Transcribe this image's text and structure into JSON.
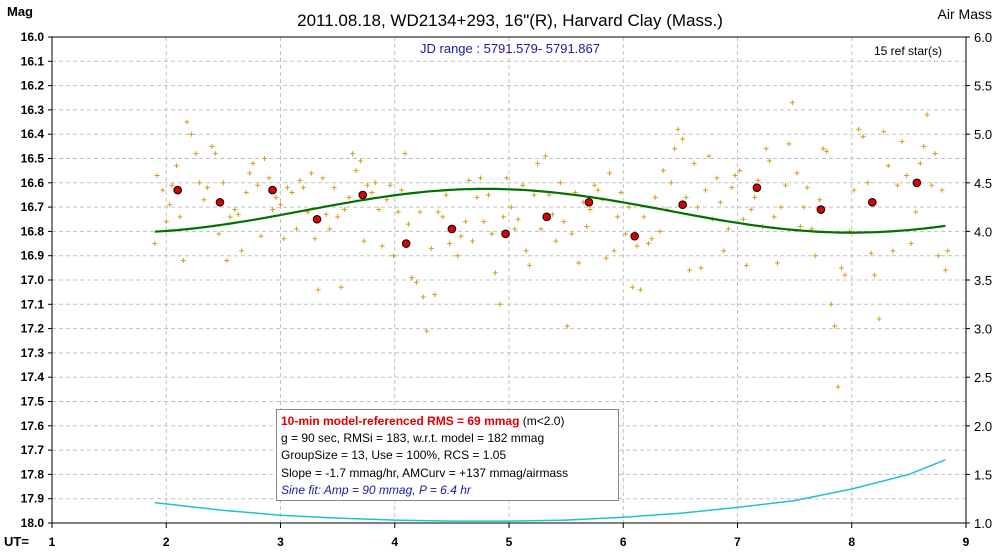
{
  "chart_data": {
    "type": "scatter",
    "title": "2011.08.18, WD2134+293, 16\"(R), Harvard Clay (Mass.)",
    "ylabel": "Mag",
    "y2label": "Air Mass",
    "xlabel": "UT=",
    "jd_range": "JD range : 5791.579- 5791.867",
    "ref_stars": "15 ref star(s)",
    "xlim": [
      1,
      9
    ],
    "ylim": [
      16.0,
      18.0
    ],
    "y2lim": [
      1.0,
      6.0
    ],
    "x_ticks": [
      "1",
      "2",
      "3",
      "4",
      "5",
      "6",
      "7",
      "8",
      "9"
    ],
    "y_ticks": [
      "16.0",
      "16.1",
      "16.2",
      "16.3",
      "16.4",
      "16.5",
      "16.6",
      "16.7",
      "16.8",
      "16.9",
      "17.0",
      "17.1",
      "17.2",
      "17.3",
      "17.4",
      "17.5",
      "17.6",
      "17.7",
      "17.8",
      "17.9",
      "18.0"
    ],
    "y2_ticks": [
      "6.0",
      "5.5",
      "5.0",
      "4.5",
      "4.0",
      "3.5",
      "3.0",
      "2.5",
      "2.0",
      "1.5",
      "1.0"
    ],
    "grid": true,
    "info_lines": {
      "rms": "10-min model-referenced RMS = 69 mmag",
      "rms_cond": "(m<2.0)",
      "line2": "g = 90 sec, RMSi = 183, w.r.t. model = 182 mmag",
      "line3": "GroupSize = 13, Use = 100%, RCS = 1.05",
      "line4": "Slope = -1.7 mmag/hr, AMCurv = +137 mmag/airmass",
      "line5": "Sine fit: Amp = 90 mmag, P = 6.4 hr"
    },
    "colors": {
      "raw": "#d4a017",
      "mean": "#dd0000",
      "sine": "#007000",
      "airmass": "#20c0d0",
      "grid": "#c0c0c0"
    },
    "series": [
      {
        "name": "Raw",
        "points": [
          [
            1.9,
            16.85
          ],
          [
            1.92,
            16.57
          ],
          [
            1.97,
            16.63
          ],
          [
            2.0,
            16.76
          ],
          [
            2.03,
            16.69
          ],
          [
            2.05,
            16.61
          ],
          [
            2.09,
            16.53
          ],
          [
            2.12,
            16.74
          ],
          [
            2.15,
            16.92
          ],
          [
            2.18,
            16.35
          ],
          [
            2.22,
            16.4
          ],
          [
            2.26,
            16.48
          ],
          [
            2.29,
            16.6
          ],
          [
            2.33,
            16.67
          ],
          [
            2.36,
            16.62
          ],
          [
            2.4,
            16.45
          ],
          [
            2.43,
            16.48
          ],
          [
            2.46,
            16.81
          ],
          [
            2.5,
            16.6
          ],
          [
            2.53,
            16.92
          ],
          [
            2.56,
            16.74
          ],
          [
            2.6,
            16.71
          ],
          [
            2.63,
            16.73
          ],
          [
            2.66,
            16.88
          ],
          [
            2.7,
            16.64
          ],
          [
            2.73,
            16.56
          ],
          [
            2.76,
            16.52
          ],
          [
            2.8,
            16.61
          ],
          [
            2.83,
            16.82
          ],
          [
            2.86,
            16.5
          ],
          [
            2.9,
            16.58
          ],
          [
            2.93,
            16.71
          ],
          [
            2.96,
            16.66
          ],
          [
            3.0,
            16.69
          ],
          [
            3.03,
            16.83
          ],
          [
            3.06,
            16.62
          ],
          [
            3.1,
            16.64
          ],
          [
            3.14,
            16.79
          ],
          [
            3.17,
            16.59
          ],
          [
            3.2,
            16.62
          ],
          [
            3.24,
            16.72
          ],
          [
            3.27,
            16.56
          ],
          [
            3.3,
            16.83
          ],
          [
            3.33,
            17.04
          ],
          [
            3.37,
            16.58
          ],
          [
            3.4,
            16.73
          ],
          [
            3.43,
            16.79
          ],
          [
            3.47,
            16.62
          ],
          [
            3.5,
            16.74
          ],
          [
            3.53,
            17.03
          ],
          [
            3.56,
            16.71
          ],
          [
            3.6,
            16.66
          ],
          [
            3.63,
            16.48
          ],
          [
            3.66,
            16.55
          ],
          [
            3.7,
            16.51
          ],
          [
            3.73,
            16.84
          ],
          [
            3.76,
            16.61
          ],
          [
            3.8,
            16.64
          ],
          [
            3.83,
            16.6
          ],
          [
            3.86,
            16.71
          ],
          [
            3.89,
            16.86
          ],
          [
            3.93,
            16.67
          ],
          [
            3.96,
            16.61
          ],
          [
            3.99,
            16.9
          ],
          [
            4.03,
            16.72
          ],
          [
            4.06,
            16.63
          ],
          [
            4.09,
            16.48
          ],
          [
            4.12,
            16.77
          ],
          [
            4.15,
            16.99
          ],
          [
            4.19,
            17.01
          ],
          [
            4.22,
            16.72
          ],
          [
            4.25,
            17.07
          ],
          [
            4.28,
            17.21
          ],
          [
            4.32,
            16.87
          ],
          [
            4.35,
            17.06
          ],
          [
            4.38,
            16.72
          ],
          [
            4.42,
            16.74
          ],
          [
            4.45,
            16.65
          ],
          [
            4.48,
            16.85
          ],
          [
            4.52,
            16.79
          ],
          [
            4.55,
            16.9
          ],
          [
            4.58,
            16.82
          ],
          [
            4.62,
            16.76
          ],
          [
            4.65,
            16.59
          ],
          [
            4.68,
            16.84
          ],
          [
            4.72,
            16.66
          ],
          [
            4.75,
            16.58
          ],
          [
            4.78,
            16.76
          ],
          [
            4.82,
            16.65
          ],
          [
            4.85,
            16.81
          ],
          [
            4.88,
            16.97
          ],
          [
            4.92,
            17.1
          ],
          [
            4.95,
            16.74
          ],
          [
            4.98,
            16.58
          ],
          [
            5.02,
            16.7
          ],
          [
            5.05,
            16.79
          ],
          [
            5.08,
            16.75
          ],
          [
            5.12,
            16.61
          ],
          [
            5.15,
            16.88
          ],
          [
            5.18,
            16.94
          ],
          [
            5.22,
            16.65
          ],
          [
            5.25,
            16.52
          ],
          [
            5.28,
            16.79
          ],
          [
            5.32,
            16.49
          ],
          [
            5.35,
            16.65
          ],
          [
            5.38,
            16.73
          ],
          [
            5.41,
            16.84
          ],
          [
            5.45,
            16.6
          ],
          [
            5.48,
            16.76
          ],
          [
            5.51,
            17.19
          ],
          [
            5.55,
            16.81
          ],
          [
            5.58,
            16.64
          ],
          [
            5.61,
            16.93
          ],
          [
            5.65,
            16.68
          ],
          [
            5.68,
            16.78
          ],
          [
            5.71,
            16.71
          ],
          [
            5.75,
            16.61
          ],
          [
            5.78,
            16.63
          ],
          [
            5.82,
            16.67
          ],
          [
            5.85,
            16.91
          ],
          [
            5.88,
            16.56
          ],
          [
            5.92,
            16.88
          ],
          [
            5.95,
            16.74
          ],
          [
            5.98,
            16.64
          ],
          [
            6.02,
            16.81
          ],
          [
            6.05,
            16.7
          ],
          [
            6.08,
            17.03
          ],
          [
            6.12,
            16.86
          ],
          [
            6.15,
            17.04
          ],
          [
            6.18,
            16.74
          ],
          [
            6.22,
            16.85
          ],
          [
            6.25,
            16.83
          ],
          [
            6.28,
            16.66
          ],
          [
            6.32,
            16.8
          ],
          [
            6.35,
            16.55
          ],
          [
            6.38,
            16.71
          ],
          [
            6.42,
            16.6
          ],
          [
            6.45,
            16.46
          ],
          [
            6.48,
            16.38
          ],
          [
            6.52,
            16.42
          ],
          [
            6.55,
            16.66
          ],
          [
            6.58,
            16.96
          ],
          [
            6.62,
            16.52
          ],
          [
            6.65,
            16.7
          ],
          [
            6.68,
            16.95
          ],
          [
            6.72,
            16.63
          ],
          [
            6.75,
            16.49
          ],
          [
            6.78,
            16.75
          ],
          [
            6.82,
            16.58
          ],
          [
            6.85,
            16.68
          ],
          [
            6.88,
            16.88
          ],
          [
            6.92,
            16.79
          ],
          [
            6.95,
            16.62
          ],
          [
            6.98,
            16.57
          ],
          [
            7.02,
            16.55
          ],
          [
            7.05,
            16.75
          ],
          [
            7.08,
            16.94
          ],
          [
            7.12,
            16.71
          ],
          [
            7.15,
            16.66
          ],
          [
            7.18,
            16.59
          ],
          [
            7.22,
            16.78
          ],
          [
            7.25,
            16.46
          ],
          [
            7.28,
            16.51
          ],
          [
            7.32,
            16.74
          ],
          [
            7.35,
            16.93
          ],
          [
            7.38,
            16.7
          ],
          [
            7.42,
            16.61
          ],
          [
            7.45,
            16.44
          ],
          [
            7.48,
            16.27
          ],
          [
            7.52,
            16.56
          ],
          [
            7.55,
            16.78
          ],
          [
            7.58,
            16.7
          ],
          [
            7.61,
            16.62
          ],
          [
            7.65,
            16.79
          ],
          [
            7.68,
            16.9
          ],
          [
            7.72,
            16.67
          ],
          [
            7.75,
            16.46
          ],
          [
            7.78,
            16.47
          ],
          [
            7.82,
            17.1
          ],
          [
            7.85,
            17.19
          ],
          [
            7.88,
            17.44
          ],
          [
            7.91,
            16.95
          ],
          [
            7.94,
            16.98
          ],
          [
            7.98,
            16.8
          ],
          [
            8.02,
            16.63
          ],
          [
            8.06,
            16.38
          ],
          [
            8.1,
            16.41
          ],
          [
            8.14,
            16.6
          ],
          [
            8.17,
            16.89
          ],
          [
            8.2,
            16.98
          ],
          [
            8.24,
            17.16
          ],
          [
            8.28,
            16.39
          ],
          [
            8.32,
            16.53
          ],
          [
            8.36,
            16.88
          ],
          [
            8.4,
            16.61
          ],
          [
            8.44,
            16.43
          ],
          [
            8.48,
            16.57
          ],
          [
            8.52,
            16.85
          ],
          [
            8.56,
            16.72
          ],
          [
            8.6,
            16.52
          ],
          [
            8.63,
            16.45
          ],
          [
            8.66,
            16.32
          ],
          [
            8.7,
            16.61
          ],
          [
            8.73,
            16.48
          ],
          [
            8.76,
            16.9
          ],
          [
            8.79,
            16.63
          ],
          [
            8.82,
            16.96
          ],
          [
            8.84,
            16.88
          ]
        ]
      },
      {
        "name": "Mean",
        "points": [
          [
            2.1,
            16.63
          ],
          [
            2.47,
            16.68
          ],
          [
            2.93,
            16.63
          ],
          [
            3.32,
            16.75
          ],
          [
            3.72,
            16.65
          ],
          [
            4.1,
            16.85
          ],
          [
            4.5,
            16.79
          ],
          [
            4.97,
            16.81
          ],
          [
            5.33,
            16.74
          ],
          [
            5.7,
            16.68
          ],
          [
            6.1,
            16.82
          ],
          [
            6.52,
            16.69
          ],
          [
            7.17,
            16.62
          ],
          [
            7.73,
            16.71
          ],
          [
            8.18,
            16.68
          ],
          [
            8.57,
            16.6
          ]
        ]
      },
      {
        "name": "Sine fit",
        "model": {
          "x_start": 1.9,
          "x_end": 8.82,
          "mean": 16.715,
          "amp": 0.09,
          "period": 6.4,
          "min_at": 8.0
        }
      },
      {
        "name": "Air mass",
        "points": [
          [
            1.9,
            1.21
          ],
          [
            2.5,
            1.13
          ],
          [
            3.0,
            1.08
          ],
          [
            3.5,
            1.05
          ],
          [
            4.0,
            1.03
          ],
          [
            4.5,
            1.02
          ],
          [
            5.0,
            1.02
          ],
          [
            5.5,
            1.03
          ],
          [
            6.0,
            1.06
          ],
          [
            6.5,
            1.1
          ],
          [
            7.0,
            1.16
          ],
          [
            7.5,
            1.23
          ],
          [
            8.0,
            1.35
          ],
          [
            8.5,
            1.5
          ],
          [
            8.82,
            1.65
          ]
        ]
      }
    ]
  }
}
